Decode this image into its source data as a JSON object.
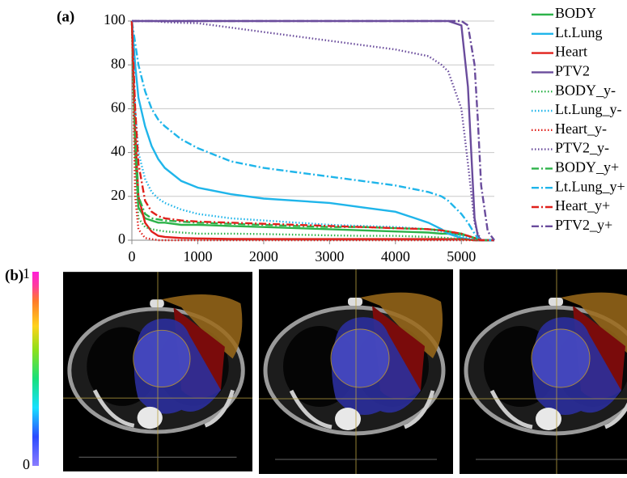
{
  "chart_data": {
    "type": "line",
    "title": "(a)",
    "x": [
      0,
      50,
      100,
      200,
      300,
      400,
      500,
      750,
      1000,
      1500,
      2000,
      2500,
      3000,
      3500,
      4000,
      4500,
      4700,
      4800,
      5000,
      5100,
      5200,
      5250,
      5300,
      5400,
      5500
    ],
    "xlim": [
      0,
      5500
    ],
    "xticks": [
      0,
      1000,
      2000,
      3000,
      4000,
      5000
    ],
    "ylim": [
      0,
      100
    ],
    "yticks": [
      0,
      20,
      40,
      60,
      80,
      100
    ],
    "grid": true,
    "series": [
      {
        "name": "BODY",
        "color": "#2db34a",
        "style": "solid",
        "values": [
          100,
          40,
          15,
          10,
          9,
          8,
          8,
          7,
          7,
          6.5,
          6,
          5.5,
          5,
          4.5,
          4,
          3.5,
          3,
          3,
          2.5,
          2,
          1,
          0.5,
          0,
          0,
          0
        ]
      },
      {
        "name": "Lt.Lung",
        "color": "#1fb5ea",
        "style": "solid",
        "values": [
          100,
          80,
          65,
          52,
          43,
          37,
          33,
          27,
          24,
          21,
          19,
          18,
          17,
          15,
          13,
          8,
          5,
          3,
          1,
          0.5,
          0,
          0,
          0,
          0,
          0
        ]
      },
      {
        "name": "Heart",
        "color": "#e0201b",
        "style": "solid",
        "values": [
          100,
          50,
          20,
          8,
          4,
          2,
          1.5,
          1,
          0.8,
          0.6,
          0.5,
          0.5,
          0.5,
          0.5,
          0.5,
          0.5,
          0.5,
          0.5,
          0.5,
          0.3,
          0,
          0,
          0,
          0,
          0
        ]
      },
      {
        "name": "PTV2",
        "color": "#6a4c9c",
        "style": "solid",
        "values": [
          100,
          100,
          100,
          100,
          100,
          100,
          100,
          100,
          100,
          100,
          100,
          100,
          100,
          100,
          100,
          100,
          100,
          100,
          98,
          70,
          10,
          2,
          0,
          0,
          0
        ]
      },
      {
        "name": "BODY_y-",
        "color": "#2db34a",
        "style": "dotted",
        "values": [
          100,
          30,
          10,
          6,
          5,
          4.5,
          4,
          3.5,
          3,
          3,
          2.8,
          2.5,
          2.2,
          2,
          2,
          1.5,
          1.2,
          1,
          0.5,
          0.2,
          0,
          0,
          0,
          0,
          0
        ]
      },
      {
        "name": "Lt.Lung_y-",
        "color": "#1fb5ea",
        "style": "dotted",
        "values": [
          100,
          60,
          40,
          28,
          22,
          19,
          17,
          14,
          12,
          10,
          9,
          8,
          7,
          6.5,
          6,
          5,
          4,
          3.5,
          2,
          1,
          0.5,
          0,
          0,
          0,
          0
        ]
      },
      {
        "name": "Heart_y-",
        "color": "#e0201b",
        "style": "dotted",
        "values": [
          100,
          20,
          5,
          1,
          0.5,
          0,
          0,
          0,
          0,
          0,
          0,
          0,
          0,
          0,
          0,
          0,
          0,
          0,
          0,
          0,
          0,
          0,
          0,
          0,
          0
        ]
      },
      {
        "name": "PTV2_y-",
        "color": "#6a4c9c",
        "style": "dotted",
        "values": [
          100,
          100,
          100,
          100,
          100,
          99.8,
          99.5,
          99.2,
          99,
          97,
          95,
          93,
          91,
          89,
          87,
          84,
          80,
          77,
          60,
          35,
          8,
          3,
          0,
          0,
          0
        ]
      },
      {
        "name": "BODY_y+",
        "color": "#2db34a",
        "style": "dashdot",
        "values": [
          100,
          50,
          20,
          12,
          10,
          9.5,
          9,
          8.5,
          8,
          7.5,
          7,
          6.5,
          6,
          6,
          5.5,
          5,
          4.5,
          4,
          3,
          2,
          1,
          0.5,
          0,
          0,
          0
        ]
      },
      {
        "name": "Lt.Lung_y+",
        "color": "#1fb5ea",
        "style": "dashdot",
        "values": [
          100,
          90,
          80,
          68,
          60,
          55,
          52,
          46,
          42,
          36,
          33,
          31,
          29,
          27,
          25,
          22,
          20,
          18,
          12,
          8,
          3,
          1,
          0,
          0,
          0
        ]
      },
      {
        "name": "Heart_y+",
        "color": "#e0201b",
        "style": "dashdot",
        "values": [
          100,
          60,
          35,
          18,
          13,
          11,
          10,
          9,
          8.5,
          8,
          7.5,
          7,
          6.5,
          6,
          5.5,
          5,
          4.5,
          4,
          3,
          2,
          1,
          0.5,
          0,
          0,
          0
        ]
      },
      {
        "name": "PTV2_y+",
        "color": "#6a4c9c",
        "style": "dashdot",
        "values": [
          100,
          100,
          100,
          100,
          100,
          100,
          100,
          100,
          100,
          100,
          100,
          100,
          100,
          100,
          100,
          100,
          100,
          100,
          100,
          98,
          80,
          55,
          25,
          4,
          0
        ]
      }
    ]
  },
  "panel_b": {
    "label": "(b)",
    "colorbar_ticks": [
      0,
      1
    ]
  }
}
